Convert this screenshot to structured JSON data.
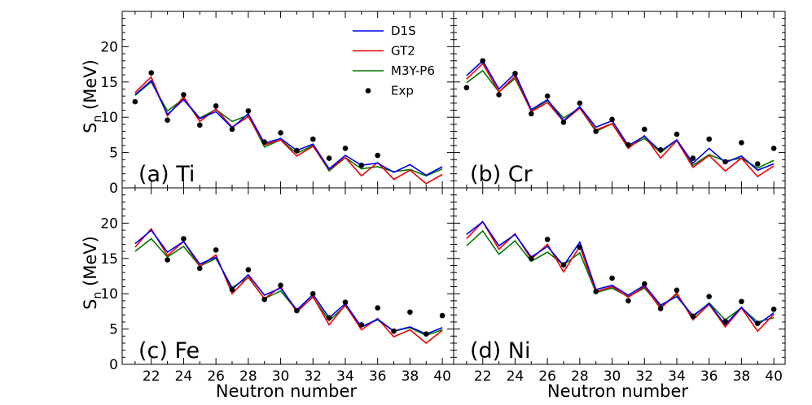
{
  "chart_data": [
    {
      "type": "line",
      "panel_label": "(a) Ti",
      "x": [
        21,
        22,
        23,
        24,
        25,
        26,
        27,
        28,
        29,
        30,
        31,
        32,
        33,
        34,
        35,
        36,
        37,
        38,
        39,
        40
      ],
      "series": [
        {
          "name": "D1S",
          "values": [
            13.2,
            15.2,
            10.4,
            12.5,
            9.8,
            10.8,
            8.5,
            10.5,
            6.3,
            7.0,
            5.3,
            6.2,
            2.7,
            4.6,
            3.2,
            3.5,
            2.2,
            3.3,
            1.8,
            3.0
          ]
        },
        {
          "name": "GT2",
          "values": [
            13.5,
            15.7,
            10.2,
            12.9,
            9.4,
            11.2,
            8.6,
            10.1,
            6.1,
            6.8,
            4.5,
            5.9,
            2.6,
            4.3,
            1.7,
            3.6,
            1.2,
            2.5,
            0.6,
            1.9
          ]
        },
        {
          "name": "M3Y-P6",
          "values": [
            13.1,
            15.0,
            10.9,
            12.6,
            9.9,
            11.1,
            9.4,
            10.3,
            5.8,
            6.8,
            4.9,
            6.0,
            2.4,
            4.3,
            2.7,
            3.0,
            2.3,
            2.6,
            1.7,
            2.7
          ]
        },
        {
          "name": "Exp",
          "values": [
            12.2,
            16.3,
            9.6,
            13.2,
            8.9,
            11.6,
            8.3,
            10.9,
            6.5,
            7.8,
            5.3,
            6.9,
            4.2,
            5.6,
            3.2,
            4.6,
            null,
            null,
            null,
            null
          ]
        }
      ],
      "xlabel": "",
      "ylabel": "Sn (MeV)",
      "ylim": [
        0,
        25
      ],
      "yticks": [
        0,
        5,
        10,
        15,
        20
      ],
      "xticks": [
        22,
        24,
        26,
        28,
        30,
        32,
        34,
        36,
        38,
        40
      ],
      "legend": "top-right"
    },
    {
      "type": "line",
      "panel_label": "(b) Cr",
      "x": [
        21,
        22,
        23,
        24,
        25,
        26,
        27,
        28,
        29,
        30,
        31,
        32,
        33,
        34,
        35,
        36,
        37,
        38,
        39,
        40
      ],
      "series": [
        {
          "name": "D1S",
          "values": [
            15.9,
            18.0,
            14.0,
            16.2,
            11.1,
            12.5,
            9.5,
            11.5,
            8.6,
            9.5,
            6.0,
            7.3,
            5.2,
            6.8,
            3.5,
            5.6,
            3.6,
            4.5,
            2.5,
            3.4
          ]
        },
        {
          "name": "GT2",
          "values": [
            15.4,
            17.6,
            13.6,
            15.8,
            10.8,
            12.1,
            9.4,
            11.3,
            8.2,
            9.1,
            5.6,
            7.4,
            4.2,
            6.7,
            2.9,
            4.6,
            2.4,
            4.2,
            1.6,
            3.1
          ]
        },
        {
          "name": "M3Y-P6",
          "values": [
            14.9,
            16.6,
            13.6,
            15.5,
            10.9,
            12.4,
            9.9,
            11.3,
            8.0,
            9.1,
            5.8,
            7.0,
            5.0,
            6.8,
            3.2,
            4.7,
            3.8,
            4.2,
            2.8,
            3.9
          ]
        },
        {
          "name": "Exp",
          "values": [
            14.2,
            18.0,
            13.2,
            16.2,
            10.5,
            13.0,
            9.3,
            12.0,
            8.0,
            9.7,
            6.1,
            8.3,
            5.4,
            7.6,
            4.2,
            6.9,
            3.7,
            6.4,
            3.4,
            5.6
          ]
        }
      ],
      "xlabel": "",
      "ylabel": "",
      "ylim": [
        0,
        25
      ],
      "xticks": [
        22,
        24,
        26,
        28,
        30,
        32,
        34,
        36,
        38,
        40
      ]
    },
    {
      "type": "line",
      "panel_label": "(c) Fe",
      "x": [
        21,
        22,
        23,
        24,
        25,
        26,
        27,
        28,
        29,
        30,
        31,
        32,
        33,
        34,
        35,
        36,
        37,
        38,
        39,
        40
      ],
      "series": [
        {
          "name": "D1S",
          "values": [
            17.1,
            19.0,
            15.9,
            17.4,
            14.2,
            15.2,
            10.6,
            12.7,
            9.8,
            10.8,
            7.7,
            9.9,
            6.6,
            8.6,
            5.3,
            6.4,
            4.7,
            5.3,
            4.3,
            5.2
          ]
        },
        {
          "name": "GT2",
          "values": [
            16.6,
            19.2,
            15.4,
            17.4,
            13.9,
            15.5,
            10.0,
            12.4,
            9.3,
            11.0,
            7.4,
            9.6,
            5.6,
            8.4,
            4.9,
            6.5,
            3.9,
            4.9,
            3.0,
            4.8
          ]
        },
        {
          "name": "M3Y-P6",
          "values": [
            16.0,
            17.8,
            15.2,
            16.7,
            13.9,
            15.0,
            10.9,
            12.3,
            9.3,
            10.4,
            7.6,
            9.5,
            6.2,
            8.3,
            5.3,
            6.3,
            4.7,
            5.2,
            4.1,
            4.9
          ]
        },
        {
          "name": "Exp",
          "values": [
            null,
            null,
            14.8,
            17.8,
            13.6,
            16.2,
            10.6,
            13.4,
            9.2,
            11.2,
            7.6,
            10.0,
            6.6,
            8.8,
            5.6,
            8.0,
            4.7,
            7.4,
            4.3,
            6.9
          ]
        }
      ],
      "xlabel": "Neutron number",
      "ylabel": "Sn (MeV)",
      "ylim": [
        0,
        25
      ],
      "yticks": [
        0,
        5,
        10,
        15,
        20
      ],
      "xticks": [
        22,
        24,
        26,
        28,
        30,
        32,
        34,
        36,
        38,
        40
      ]
    },
    {
      "type": "line",
      "panel_label": "(d) Ni",
      "x": [
        21,
        22,
        23,
        24,
        25,
        26,
        27,
        28,
        29,
        30,
        31,
        32,
        33,
        34,
        35,
        36,
        37,
        38,
        39,
        40
      ],
      "series": [
        {
          "name": "D1S",
          "values": [
            18.4,
            20.2,
            16.8,
            18.4,
            15.2,
            16.7,
            14.0,
            17.3,
            10.6,
            11.2,
            9.8,
            11.2,
            8.4,
            9.6,
            6.9,
            8.6,
            5.6,
            8.1,
            5.6,
            7.3
          ]
        },
        {
          "name": "GT2",
          "values": [
            17.8,
            20.2,
            16.3,
            18.5,
            14.9,
            17.0,
            13.1,
            16.7,
            10.3,
            11.0,
            9.5,
            11.0,
            7.9,
            10.1,
            6.3,
            8.5,
            5.3,
            8.0,
            4.7,
            7.1
          ]
        },
        {
          "name": "M3Y-P6",
          "values": [
            16.8,
            18.9,
            15.6,
            17.5,
            14.6,
            15.9,
            14.1,
            15.8,
            10.2,
            10.8,
            9.6,
            10.8,
            8.2,
            9.9,
            6.7,
            8.7,
            6.3,
            8.0,
            6.0,
            6.6
          ]
        },
        {
          "name": "Exp",
          "values": [
            null,
            null,
            null,
            null,
            15.0,
            17.7,
            14.1,
            16.6,
            10.3,
            12.2,
            9.0,
            11.4,
            7.9,
            10.5,
            6.8,
            9.6,
            6.1,
            8.9,
            5.8,
            7.8
          ]
        }
      ],
      "xlabel": "Neutron number",
      "ylabel": "",
      "ylim": [
        0,
        25
      ],
      "xticks": [
        22,
        24,
        26,
        28,
        30,
        32,
        34,
        36,
        38,
        40
      ]
    }
  ],
  "legend": {
    "items": [
      {
        "name": "D1S",
        "color": "#0000ee",
        "kind": "line"
      },
      {
        "name": "GT2",
        "color": "#ee0000",
        "kind": "line"
      },
      {
        "name": "M3Y-P6",
        "color": "#007700",
        "kind": "line"
      },
      {
        "name": "Exp",
        "color": "#000000",
        "kind": "dot"
      }
    ]
  },
  "colors": {
    "D1S": "#0000ee",
    "GT2": "#ee0000",
    "M3Y-P6": "#007700",
    "Exp": "#000000"
  }
}
